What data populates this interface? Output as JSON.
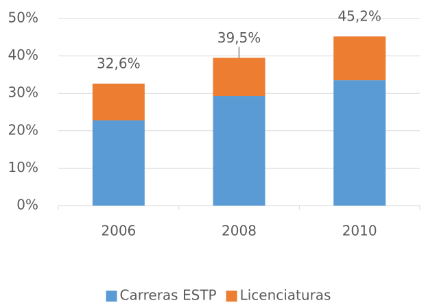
{
  "chart_data": {
    "type": "stacked_bar",
    "categories": [
      "2006",
      "2008",
      "2010"
    ],
    "series": [
      {
        "name": "Carreras ESTP",
        "color": "#5b9bd5",
        "values": [
          22.8,
          29.3,
          33.5
        ]
      },
      {
        "name": "Licenciaturas",
        "color": "#ed7d31",
        "values": [
          9.8,
          10.2,
          11.7
        ]
      }
    ],
    "totals": [
      32.6,
      39.5,
      45.2
    ],
    "total_labels": [
      "32,6%",
      "39,5%",
      "45,2%"
    ],
    "ylim": [
      0,
      50
    ],
    "yticks": [
      {
        "value": 0,
        "label": "0%"
      },
      {
        "value": 10,
        "label": "10%"
      },
      {
        "value": 20,
        "label": "20%"
      },
      {
        "value": 30,
        "label": "30%"
      },
      {
        "value": 40,
        "label": "40%"
      },
      {
        "value": 50,
        "label": "50%"
      }
    ],
    "grid": true,
    "legend": "bottom"
  }
}
